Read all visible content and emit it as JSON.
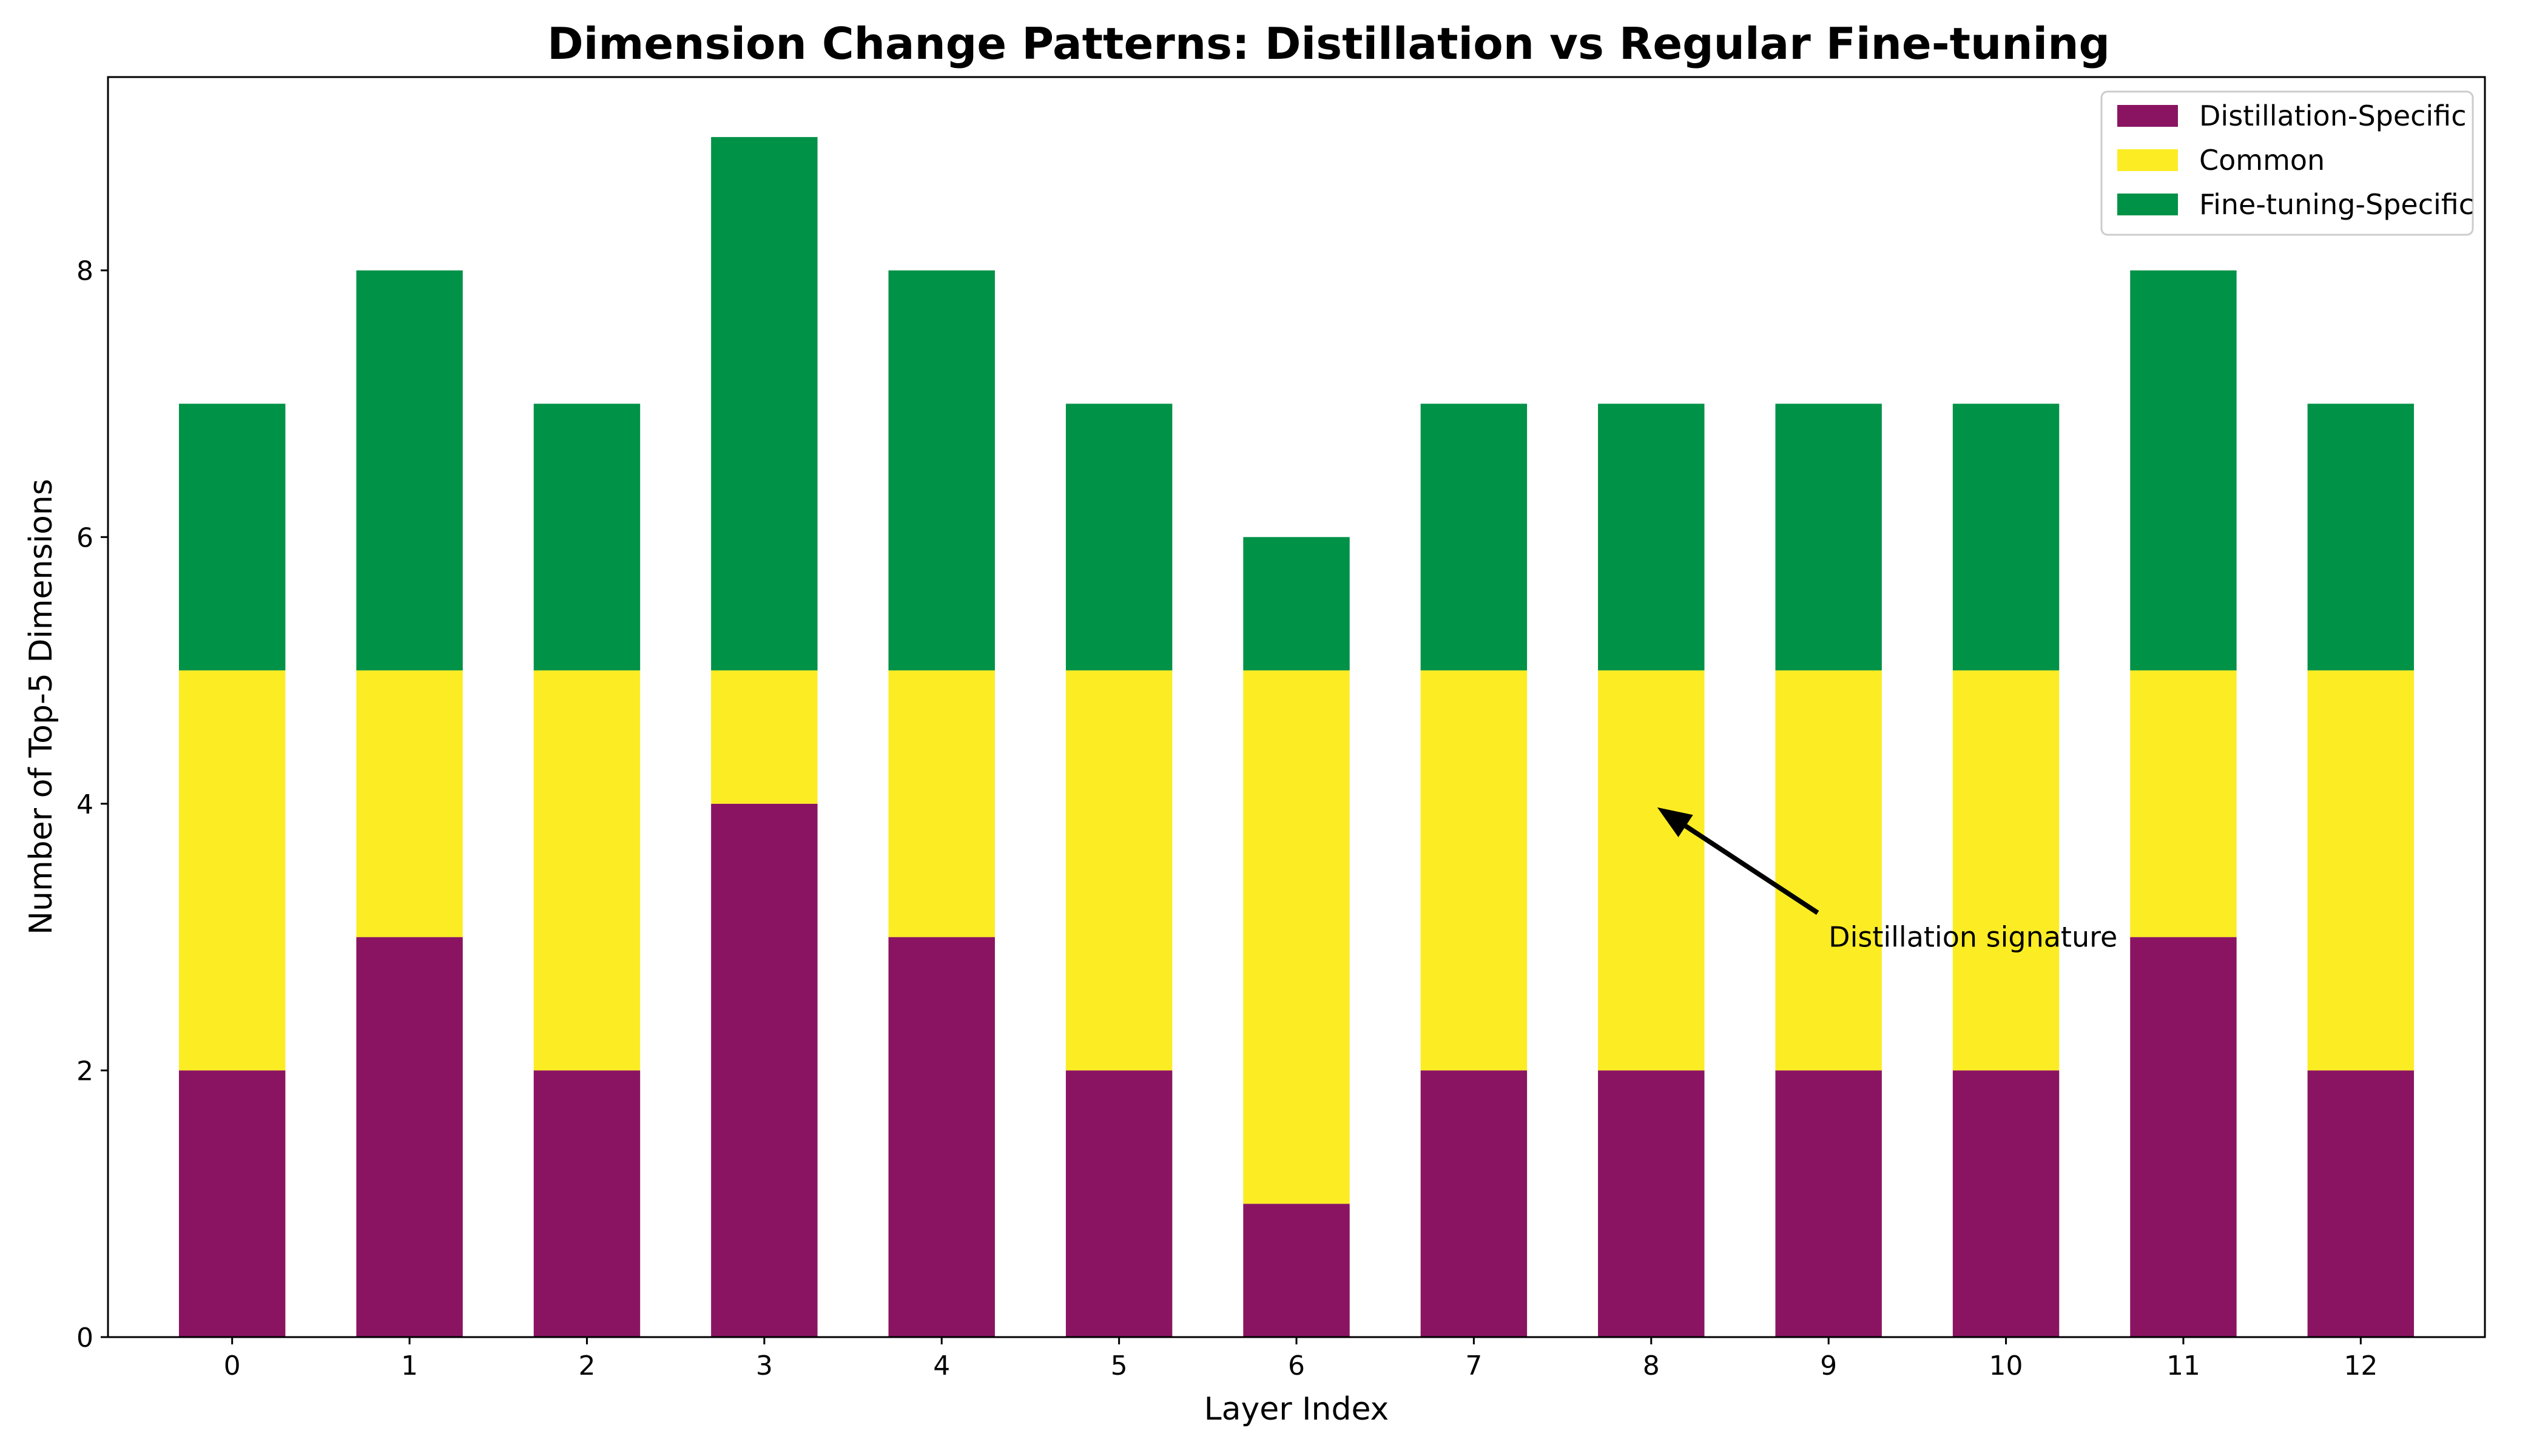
{
  "chart_data": {
    "type": "bar",
    "stacked": true,
    "title": "Dimension Change Patterns: Distillation vs Regular Fine-tuning",
    "xlabel": "Layer Index",
    "ylabel": "Number of Top-5 Dimensions",
    "categories": [
      "0",
      "1",
      "2",
      "3",
      "4",
      "5",
      "6",
      "7",
      "8",
      "9",
      "10",
      "11",
      "12"
    ],
    "ylim": [
      0,
      9.45
    ],
    "yticks": [
      "0",
      "2",
      "4",
      "6",
      "8"
    ],
    "grid": false,
    "legend_position": "top-right",
    "series": [
      {
        "name": "Distillation-Specific",
        "color": "#8a1462",
        "values": [
          2,
          3,
          2,
          4,
          3,
          2,
          1,
          2,
          2,
          2,
          2,
          3,
          2
        ]
      },
      {
        "name": "Common",
        "color": "#fcec24",
        "values": [
          3,
          2,
          3,
          1,
          2,
          3,
          4,
          3,
          3,
          3,
          3,
          2,
          3
        ]
      },
      {
        "name": "Fine-tuning-Specific",
        "color": "#009247",
        "values": [
          2,
          3,
          2,
          4,
          3,
          2,
          1,
          2,
          2,
          2,
          2,
          3,
          2
        ]
      }
    ],
    "annotations": [
      {
        "text": "Distillation signature",
        "point_x": 8,
        "point_y": 4,
        "text_x": 9,
        "text_y": 3
      }
    ]
  }
}
